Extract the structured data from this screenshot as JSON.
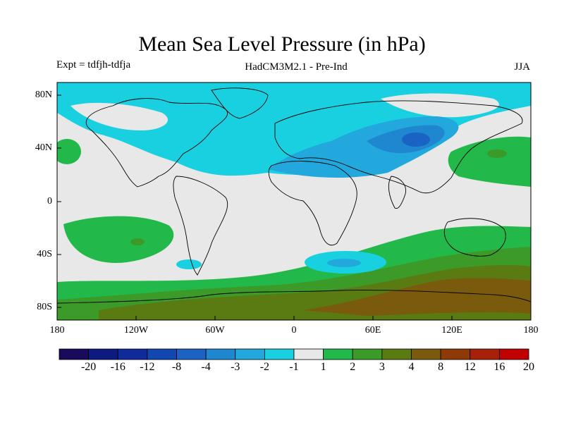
{
  "title": "Mean Sea Level Pressure (in hPa)",
  "experiment": "Expt = tdfjh-tdfja",
  "model": "HadCM3M2.1 - Pre-Ind",
  "season": "JJA",
  "map": {
    "lat_labels": [
      "80N",
      "40N",
      "0",
      "40S",
      "80S"
    ],
    "lon_labels": [
      "180",
      "120W",
      "60W",
      "0",
      "60E",
      "120E",
      "180"
    ]
  },
  "colorbar": {
    "labels": [
      "-20",
      "-16",
      "-12",
      "-8",
      "-4",
      "-3",
      "-2",
      "-1",
      "1",
      "2",
      "3",
      "4",
      "8",
      "12",
      "16",
      "20"
    ],
    "colors": [
      "#1a0a5c",
      "#0d1a80",
      "#0f2a9a",
      "#1246b0",
      "#1a63c4",
      "#1f86d0",
      "#22a8dc",
      "#18d0e0",
      "#e8e8e8",
      "#22b84a",
      "#3c9a28",
      "#5a7a12",
      "#7a5a0c",
      "#8e3a08",
      "#a8200a",
      "#c20000"
    ]
  },
  "field_colors": {
    "neutral": "#e8e8e8",
    "neg1": "#18d0e0",
    "neg2": "#22a8dc",
    "neg3": "#1f86d0",
    "neg4": "#1a63c4",
    "pos1": "#22b84a",
    "pos2": "#3c9a28",
    "pos3": "#5a7a12",
    "pos4": "#7a5a0c"
  }
}
